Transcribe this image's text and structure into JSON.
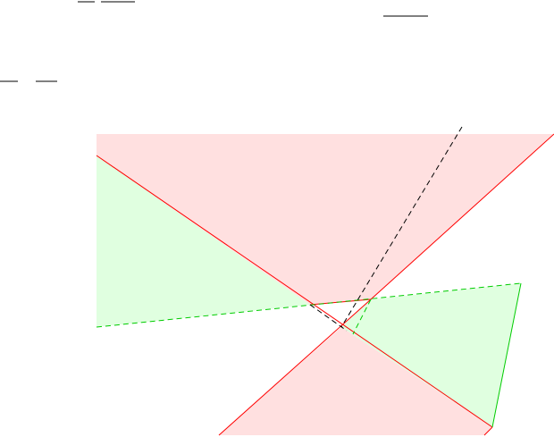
{
  "colors": {
    "background": "#ffffff",
    "red_region_fill": "#ffe0e0",
    "green_region_fill": "#e0ffe0",
    "red_line": "#ff0000",
    "green_dashed_line": "#00cc00",
    "black_dashed_line": "#000000",
    "fraction_bar": "#000000"
  },
  "regions": [
    {
      "name": "upper-red-region",
      "kind": "red"
    },
    {
      "name": "left-green-region",
      "kind": "green"
    },
    {
      "name": "right-green-region",
      "kind": "green"
    },
    {
      "name": "lower-red-region",
      "kind": "red"
    }
  ],
  "lines": [
    {
      "name": "red-solid-line-a",
      "style": "solid",
      "color_key": "red_line"
    },
    {
      "name": "red-solid-line-b",
      "style": "solid",
      "color_key": "red_line"
    },
    {
      "name": "red-solid-line-c",
      "style": "solid",
      "color_key": "red_line"
    },
    {
      "name": "red-solid-line-d",
      "style": "solid",
      "color_key": "red_line"
    },
    {
      "name": "red-solid-line-e",
      "style": "solid",
      "color_key": "red_line"
    },
    {
      "name": "green-dashed-line-a",
      "style": "dashed",
      "color_key": "green_dashed_line"
    },
    {
      "name": "green-dashed-line-b",
      "style": "dashed",
      "color_key": "green_dashed_line"
    },
    {
      "name": "green-dashed-line-c",
      "style": "dashed",
      "color_key": "green_dashed_line"
    },
    {
      "name": "black-dashed-line-a",
      "style": "dashed",
      "color_key": "black_dashed_line"
    },
    {
      "name": "black-dashed-line-b",
      "style": "dashed",
      "color_key": "black_dashed_line"
    }
  ]
}
